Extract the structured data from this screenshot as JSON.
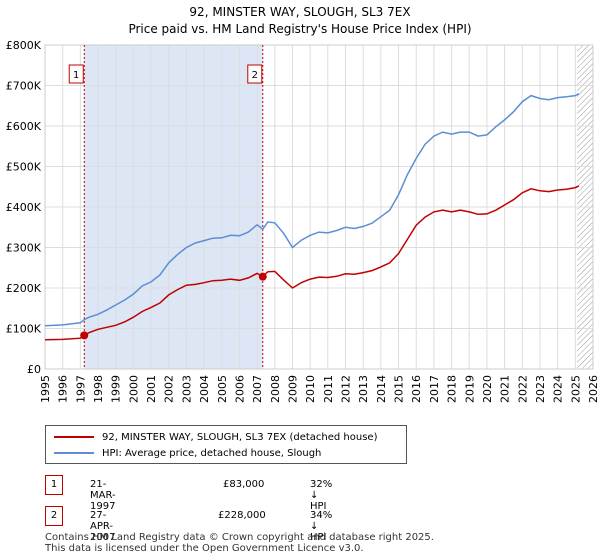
{
  "title": "92, MINSTER WAY, SLOUGH, SL3 7EX",
  "subtitle": "Price paid vs. HM Land Registry's House Price Index (HPI)",
  "colors": {
    "price_line": "#c00000",
    "hpi_line": "#5b8ed6",
    "shade": "#dce6f5",
    "grid": "#dddddd"
  },
  "legend": {
    "price_label": "92, MINSTER WAY, SLOUGH, SL3 7EX (detached house)",
    "hpi_label": "HPI: Average price, detached house, Slough"
  },
  "annotations": [
    {
      "num": "1",
      "date": "21-MAR-1997",
      "price": "£83,000",
      "hpi": "32% ↓ HPI"
    },
    {
      "num": "2",
      "date": "27-APR-2007",
      "price": "£228,000",
      "hpi": "34% ↓ HPI"
    }
  ],
  "footer": {
    "line1": "Contains HM Land Registry data © Crown copyright and database right 2025.",
    "line2": "This data is licensed under the Open Government Licence v3.0."
  },
  "chart_data": {
    "type": "line",
    "title": "92, MINSTER WAY, SLOUGH, SL3 7EX",
    "subtitle": "Price paid vs. HM Land Registry's House Price Index (HPI)",
    "xlim": [
      1995,
      2026
    ],
    "ylim": [
      0,
      800000
    ],
    "x_ticks": [
      1995,
      1996,
      1997,
      1998,
      1999,
      2000,
      2001,
      2002,
      2003,
      2004,
      2005,
      2006,
      2007,
      2008,
      2009,
      2010,
      2011,
      2012,
      2013,
      2014,
      2015,
      2016,
      2017,
      2018,
      2019,
      2020,
      2021,
      2022,
      2023,
      2024,
      2025,
      2026
    ],
    "y_ticks": [
      {
        "value": 0,
        "label": "£0"
      },
      {
        "value": 100000,
        "label": "£100K"
      },
      {
        "value": 200000,
        "label": "£200K"
      },
      {
        "value": 300000,
        "label": "£300K"
      },
      {
        "value": 400000,
        "label": "£400K"
      },
      {
        "value": 500000,
        "label": "£500K"
      },
      {
        "value": 600000,
        "label": "£600K"
      },
      {
        "value": 700000,
        "label": "£700K"
      },
      {
        "value": 800000,
        "label": "£800K"
      }
    ],
    "grid": true,
    "legend_position": "below",
    "shaded_range": [
      1997.22,
      2007.32
    ],
    "future_hatch_from": 2025.1,
    "markers": [
      {
        "label": "1",
        "x": 1997.22,
        "y": 83000
      },
      {
        "label": "2",
        "x": 2007.32,
        "y": 228000
      }
    ],
    "series": [
      {
        "name": "92, MINSTER WAY, SLOUGH, SL3 7EX (detached house)",
        "x": [
          1995.0,
          1996.0,
          1997.0,
          1997.22,
          1997.5,
          1998.0,
          1998.5,
          1999.0,
          1999.5,
          2000.0,
          2000.5,
          2001.0,
          2001.5,
          2002.0,
          2002.5,
          2003.0,
          2003.5,
          2004.0,
          2004.5,
          2005.0,
          2005.5,
          2006.0,
          2006.5,
          2007.0,
          2007.32,
          2007.6,
          2008.0,
          2008.5,
          2009.0,
          2009.5,
          2010.0,
          2010.5,
          2011.0,
          2011.5,
          2012.0,
          2012.5,
          2013.0,
          2013.5,
          2014.0,
          2014.5,
          2015.0,
          2015.5,
          2016.0,
          2016.5,
          2017.0,
          2017.5,
          2018.0,
          2018.5,
          2019.0,
          2019.5,
          2020.0,
          2020.5,
          2021.0,
          2021.5,
          2022.0,
          2022.5,
          2023.0,
          2023.5,
          2024.0,
          2024.5,
          2025.0,
          2025.2
        ],
        "y": [
          72000,
          73000,
          76000,
          83000,
          90000,
          98000,
          103000,
          108000,
          116000,
          128000,
          142000,
          152000,
          163000,
          183000,
          196000,
          207000,
          209000,
          213000,
          218000,
          219000,
          222000,
          219000,
          225000,
          236000,
          228000,
          240000,
          241000,
          220000,
          200000,
          213000,
          222000,
          227000,
          226000,
          229000,
          235000,
          234000,
          238000,
          243000,
          252000,
          262000,
          285000,
          320000,
          355000,
          375000,
          388000,
          392000,
          388000,
          392000,
          388000,
          382000,
          383000,
          392000,
          405000,
          418000,
          435000,
          445000,
          440000,
          438000,
          442000,
          444000,
          448000,
          452000
        ]
      },
      {
        "name": "HPI: Average price, detached house, Slough",
        "x": [
          1995.0,
          1996.0,
          1997.0,
          1997.22,
          1997.5,
          1998.0,
          1998.5,
          1999.0,
          1999.5,
          2000.0,
          2000.5,
          2001.0,
          2001.5,
          2002.0,
          2002.5,
          2003.0,
          2003.5,
          2004.0,
          2004.5,
          2005.0,
          2005.5,
          2006.0,
          2006.5,
          2007.0,
          2007.32,
          2007.6,
          2008.0,
          2008.5,
          2009.0,
          2009.5,
          2010.0,
          2010.5,
          2011.0,
          2011.5,
          2012.0,
          2012.5,
          2013.0,
          2013.5,
          2014.0,
          2014.5,
          2015.0,
          2015.5,
          2016.0,
          2016.5,
          2017.0,
          2017.5,
          2018.0,
          2018.5,
          2019.0,
          2019.5,
          2020.0,
          2020.5,
          2021.0,
          2021.5,
          2022.0,
          2022.5,
          2023.0,
          2023.5,
          2024.0,
          2024.5,
          2025.0,
          2025.2
        ],
        "y": [
          107000,
          109000,
          114000,
          122000,
          128000,
          135000,
          146000,
          158000,
          170000,
          185000,
          205000,
          215000,
          232000,
          262000,
          283000,
          300000,
          311000,
          317000,
          323000,
          324000,
          330000,
          329000,
          338000,
          356000,
          345000,
          363000,
          361000,
          335000,
          300000,
          318000,
          330000,
          338000,
          336000,
          342000,
          350000,
          347000,
          352000,
          360000,
          376000,
          392000,
          430000,
          480000,
          520000,
          555000,
          575000,
          585000,
          580000,
          585000,
          585000,
          575000,
          578000,
          598000,
          615000,
          635000,
          660000,
          675000,
          668000,
          665000,
          670000,
          672000,
          675000,
          680000
        ]
      }
    ]
  }
}
